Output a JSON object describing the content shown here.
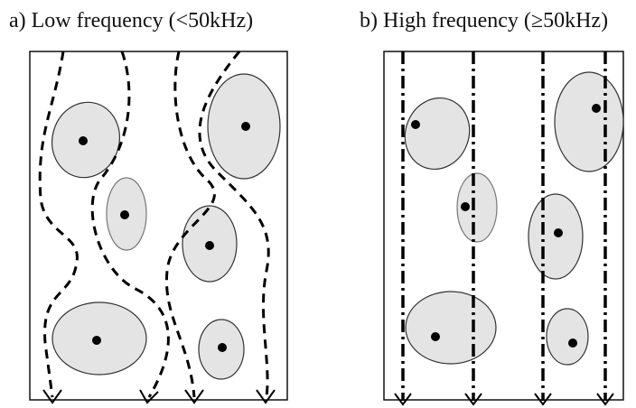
{
  "panel_a": {
    "title": "a) Low frequency (<50kHz)"
  },
  "panel_b": {
    "title": "b) High frequency (≥50kHz)"
  }
}
